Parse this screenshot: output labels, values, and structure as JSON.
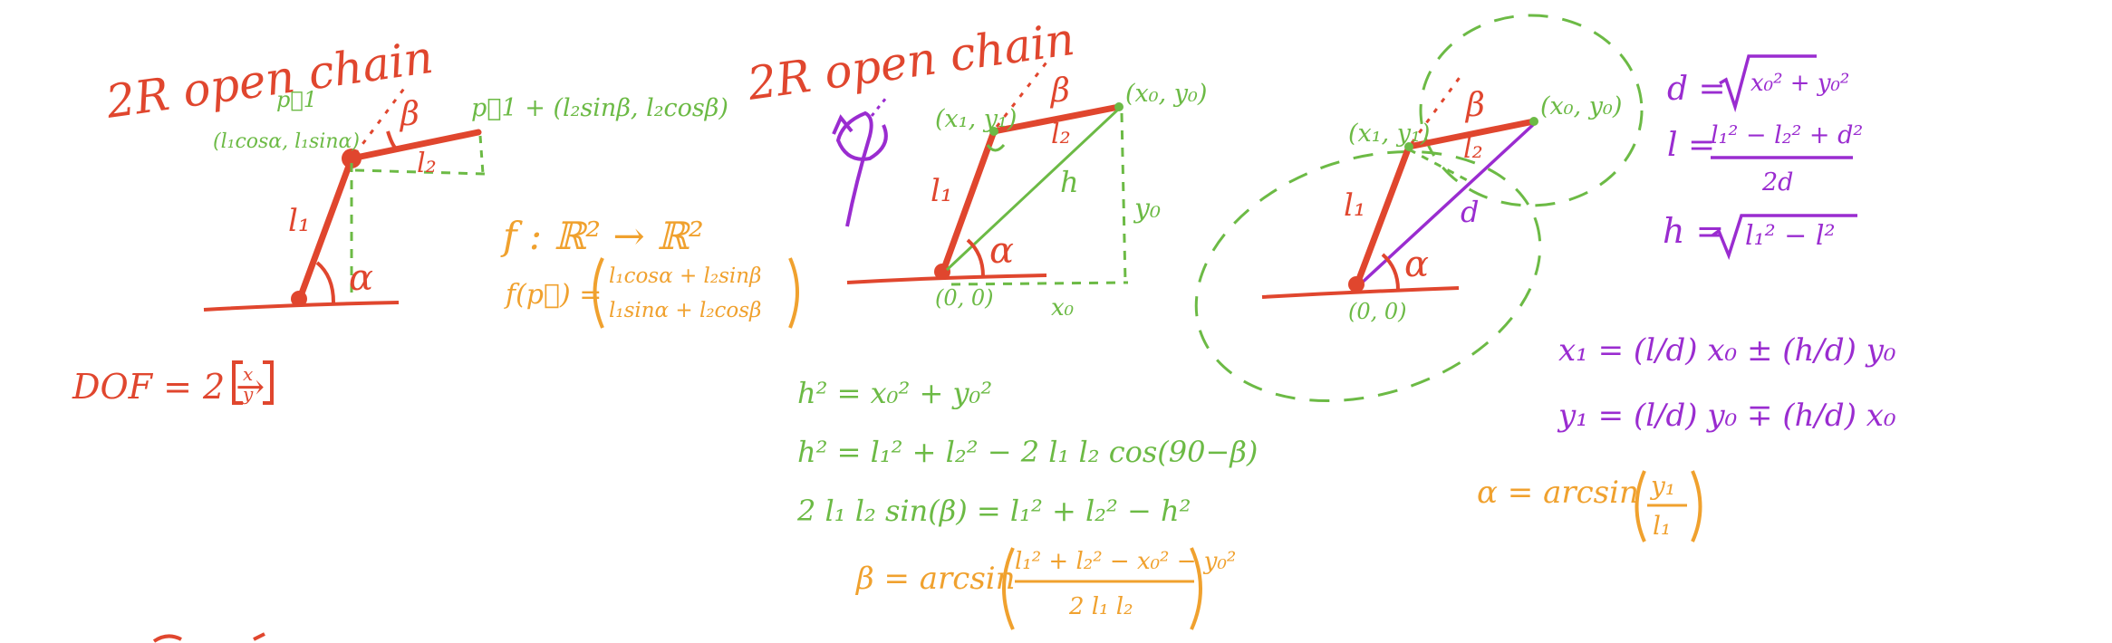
{
  "colors": {
    "red": "#e0462e",
    "green": "#6cba45",
    "orange": "#f0a12e",
    "purple": "#9a2cd0"
  },
  "panel1": {
    "title": "2R open chain",
    "p1_label": "p⃗1",
    "p1_coords": "(l₁cosα, l₁sinα)",
    "p2_label": "p⃗1 + (l₂sinβ, l₂cosβ)",
    "l1": "l₁",
    "l2": "l₂",
    "alpha": "α",
    "beta": "β",
    "dof_lhs": "DOF = 2 →",
    "dof_x": "x",
    "dof_y": "y",
    "map_def": "f : ℝ² → ℝ²",
    "f_lhs": "f(p⃗) =",
    "f_row1": "l₁cosα + l₂sinβ",
    "f_row2": "l₁sinα + l₂cosβ"
  },
  "panel2": {
    "title": "2R open chain",
    "p1": "(x₁, y₁)",
    "p2": "(x₀, y₀)",
    "origin": "(0, 0)",
    "l1": "l₁",
    "l2": "l₂",
    "h": "h",
    "y0": "y₀",
    "x0": "x₀",
    "alpha": "α",
    "beta": "β",
    "eq1": "h² = x₀² + y₀²",
    "eq2": "h² = l₁² + l₂² − 2 l₁ l₂ cos(90−β)",
    "eq3": "2 l₁ l₂ sin(β) = l₁² + l₂² − h²",
    "beta_lhs": "β = arcsin",
    "beta_num": "l₁² + l₂² − x₀² − y₀²",
    "beta_den": "2 l₁ l₂"
  },
  "panel3": {
    "p1": "(x₁, y₁)",
    "p2": "(x₀, y₀)",
    "origin": "(0, 0)",
    "l1": "l₁",
    "l2": "l₂",
    "d": "d",
    "alpha": "α",
    "beta": "β",
    "d_lhs": "d =",
    "d_rad": "x₀² + y₀²",
    "l_lhs": "l =",
    "l_num": "l₁² − l₂² + d²",
    "l_den": "2d",
    "h_lhs": "h =",
    "h_rad": "l₁² − l²",
    "x1_eq": "x₁ = (l/d) x₀ ± (h/d) y₀",
    "y1_eq": "y₁ = (l/d) y₀ ∓ (h/d) x₀",
    "alpha_lhs": "α = arcsin",
    "alpha_num": "y₁",
    "alpha_den": "l₁"
  }
}
